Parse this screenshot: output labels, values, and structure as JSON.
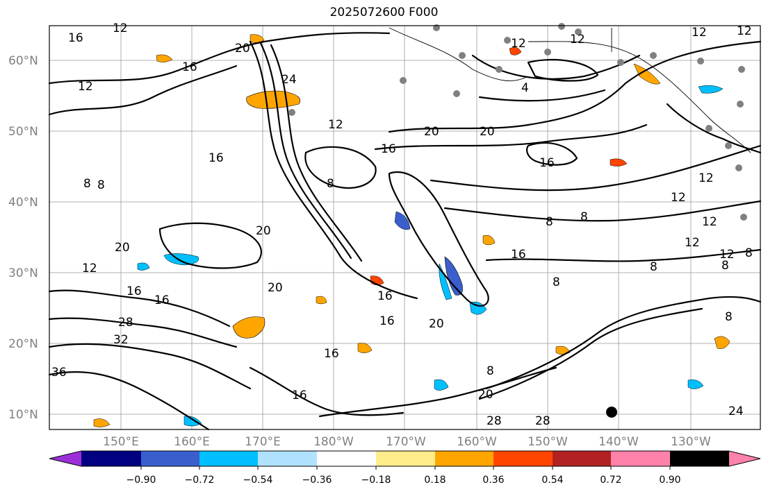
{
  "title": "2025072600 F000",
  "map": {
    "lat_labels": [
      "60°N",
      "50°N",
      "40°N",
      "30°N",
      "20°N",
      "10°N"
    ],
    "lon_labels": [
      "150°E",
      "160°E",
      "170°E",
      "180°W",
      "170°W",
      "160°W",
      "150°W",
      "140°W",
      "130°W"
    ],
    "contour_labels": [
      "12",
      "16",
      "20",
      "24",
      "28",
      "32",
      "36",
      "8",
      "4"
    ]
  },
  "colorbar": {
    "ticks": [
      "−0.90",
      "−0.72",
      "−0.54",
      "−0.36",
      "−0.18",
      "0.18",
      "0.36",
      "0.54",
      "0.72",
      "0.90"
    ],
    "colors": [
      "#9b30d8",
      "#000080",
      "#3a5fcd",
      "#00bfff",
      "#b0e2ff",
      "#ffffff",
      "#ffec8b",
      "#ffa500",
      "#ff4500",
      "#b22222",
      "#ff82ab"
    ]
  }
}
